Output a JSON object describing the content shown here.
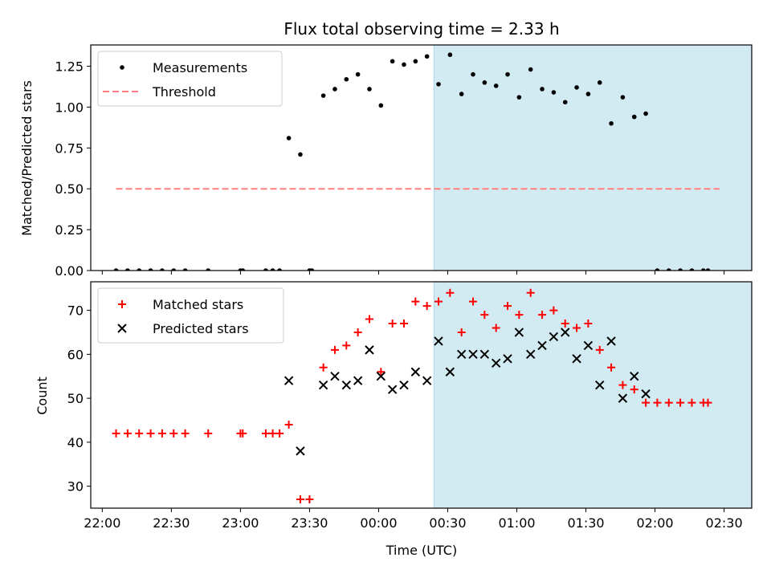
{
  "chart_data": [
    {
      "type": "scatter",
      "title": "Flux total observing time = 2.33 h",
      "xlabel": "",
      "ylabel": "Matched/Predicted stars",
      "ylim": [
        0,
        1.38
      ],
      "yticks": [
        "0.00",
        "0.25",
        "0.50",
        "0.75",
        "1.00",
        "1.25"
      ],
      "xlim_minutes": [
        -125,
        162
      ],
      "shaded_interval_minutes": [
        24,
        164
      ],
      "legend": {
        "placement": "top-left",
        "entries": [
          "Measurements",
          "Threshold"
        ]
      },
      "colors": {
        "measurements": "#000000",
        "threshold": "#ff7f7f",
        "shade": "#add8e6"
      },
      "threshold": {
        "value": 0.5,
        "x_range_minutes": [
          -114,
          148
        ]
      },
      "series": [
        {
          "name": "Measurements",
          "marker": "dot",
          "x_minutes": [
            -114,
            -109,
            -104,
            -99,
            -94,
            -89,
            -84,
            -74,
            -60,
            -59,
            -49,
            -46,
            -43,
            -39,
            -34,
            -30,
            -29,
            -24,
            -19,
            -14,
            -9,
            -4,
            1,
            6,
            11,
            16,
            21,
            26,
            31,
            36,
            41,
            46,
            51,
            56,
            61,
            66,
            71,
            76,
            81,
            86,
            91,
            96,
            101,
            106,
            111,
            116,
            121,
            126,
            131,
            136,
            141,
            143
          ],
          "values": [
            0,
            0,
            0,
            0,
            0,
            0,
            0,
            0,
            0,
            0,
            0,
            0,
            0,
            0.81,
            0.71,
            0,
            0,
            1.07,
            1.11,
            1.17,
            1.2,
            1.11,
            1.01,
            1.28,
            1.26,
            1.28,
            1.31,
            1.14,
            1.32,
            1.08,
            1.2,
            1.15,
            1.13,
            1.2,
            1.06,
            1.23,
            1.11,
            1.09,
            1.03,
            1.12,
            1.08,
            1.15,
            0.9,
            1.06,
            0.94,
            0.96,
            0,
            0,
            0,
            0,
            0,
            0
          ]
        }
      ]
    },
    {
      "type": "scatter",
      "title": "",
      "xlabel": "Time (UTC)",
      "ylabel": "Count",
      "ylim": [
        25,
        76.5
      ],
      "yticks": [
        "30",
        "40",
        "50",
        "60",
        "70"
      ],
      "xlim_minutes": [
        -125,
        162
      ],
      "xticks": [
        "22:00",
        "22:30",
        "23:00",
        "23:30",
        "00:00",
        "00:30",
        "01:00",
        "01:30",
        "02:00",
        "02:30"
      ],
      "xtick_minutes": [
        -120,
        -90,
        -60,
        -30,
        0,
        30,
        60,
        90,
        120,
        150
      ],
      "shaded_interval_minutes": [
        24,
        164
      ],
      "legend": {
        "placement": "top-left",
        "entries": [
          "Matched stars",
          "Predicted stars"
        ]
      },
      "colors": {
        "matched": "#ff0000",
        "predicted": "#000000",
        "shade": "#add8e6"
      },
      "series": [
        {
          "name": "Matched stars",
          "marker": "plus",
          "x_minutes": [
            -114,
            -109,
            -104,
            -99,
            -94,
            -89,
            -84,
            -74,
            -60,
            -59,
            -49,
            -46,
            -43,
            -39,
            -34,
            -30,
            -24,
            -19,
            -14,
            -9,
            -4,
            1,
            6,
            11,
            16,
            21,
            26,
            31,
            36,
            41,
            46,
            51,
            56,
            61,
            66,
            71,
            76,
            81,
            86,
            91,
            96,
            101,
            106,
            111,
            116,
            121,
            126,
            131,
            136,
            141,
            143
          ],
          "values": [
            42,
            42,
            42,
            42,
            42,
            42,
            42,
            42,
            42,
            42,
            42,
            42,
            42,
            44,
            27,
            27,
            57,
            61,
            62,
            65,
            68,
            56,
            67,
            67,
            72,
            71,
            72,
            74,
            65,
            72,
            69,
            66,
            71,
            69,
            74,
            69,
            70,
            67,
            66,
            67,
            61,
            57,
            53,
            52,
            49,
            49,
            49,
            49,
            49,
            49,
            49
          ]
        },
        {
          "name": "Predicted stars",
          "marker": "x",
          "x_minutes": [
            -39,
            -34,
            -24,
            -19,
            -14,
            -9,
            -4,
            1,
            6,
            11,
            16,
            21,
            26,
            31,
            36,
            41,
            46,
            51,
            56,
            61,
            66,
            71,
            76,
            81,
            86,
            91,
            96,
            101,
            106,
            111,
            116
          ],
          "values": [
            54,
            38,
            53,
            55,
            53,
            54,
            61,
            55,
            52,
            53,
            56,
            54,
            63,
            56,
            60,
            60,
            60,
            58,
            59,
            65,
            60,
            62,
            64,
            65,
            59,
            62,
            53,
            63,
            50,
            55,
            51
          ]
        }
      ]
    }
  ]
}
